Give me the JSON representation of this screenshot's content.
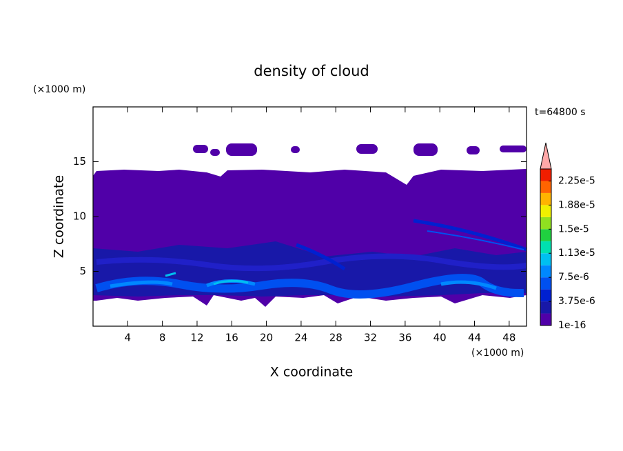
{
  "chart_data": {
    "type": "contourf",
    "title": "density of cloud",
    "x_label": "X coordinate",
    "y_label": "Z coordinate",
    "x_unit": "(×1000 m)",
    "y_unit": "(×1000 m)",
    "time_label": "t=64800 s",
    "xlim": [
      0,
      50
    ],
    "ylim": [
      0,
      20
    ],
    "xticks": [
      4,
      8,
      12,
      16,
      20,
      24,
      28,
      32,
      36,
      40,
      44,
      48
    ],
    "yticks": [
      5,
      10,
      15
    ],
    "colorbar": {
      "levels": [
        1e-16,
        1.875e-06,
        3.75e-06,
        5.625e-06,
        7.5e-06,
        9.375e-06,
        1.125e-05,
        1.3125e-05,
        1.5e-05,
        1.6875e-05,
        1.875e-05,
        2.0625e-05,
        2.25e-05,
        2.4375e-05
      ],
      "colors": [
        "#5000a8",
        "#1818a8",
        "#0020d0",
        "#0050f0",
        "#0088ff",
        "#00c0f0",
        "#00e0b0",
        "#20d040",
        "#90e020",
        "#f0f000",
        "#ffb400",
        "#ff6400",
        "#f01e00"
      ],
      "extend_color": "#ffa8a8",
      "ticks": [
        {
          "value": 1e-16,
          "label": "1e-16"
        },
        {
          "value": 3.75e-06,
          "label": "3.75e-6"
        },
        {
          "value": 7.5e-06,
          "label": "7.5e-6"
        },
        {
          "value": 1.125e-05,
          "label": "1.13e-5"
        },
        {
          "value": 1.5e-05,
          "label": "1.5e-5"
        },
        {
          "value": 1.875e-05,
          "label": "1.88e-5"
        },
        {
          "value": 2.25e-05,
          "label": "2.25e-5"
        }
      ]
    }
  }
}
